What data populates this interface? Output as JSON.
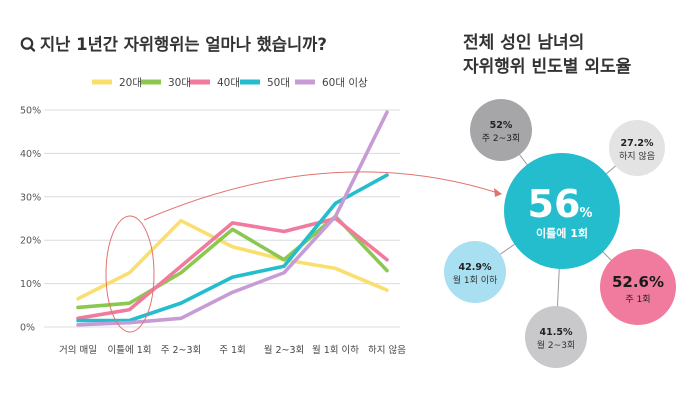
{
  "left_chart_title": "지난 1년간 자위행위는 얼마나 했습니까?",
  "right_chart_title_lines": [
    "전체 성인 남녀의",
    "자위행위 빈도별 외도율"
  ],
  "colors": {
    "20대": "#fbdf6e",
    "30대": "#8cc750",
    "40대": "#f07b9e",
    "50대": "#23bdcd",
    "60대 이상": "#c79cd6",
    "highlight": "#e2736d",
    "center_bubble": "#23bdcd",
    "bubble_dark_gray": "#a6a6a8",
    "bubble_light_gray": "#e3e3e4",
    "bubble_light_blue": "#a8e0f1",
    "bubble_pink": "#f07b9e",
    "bubble_mid_gray": "#c9c9cb"
  },
  "chart_data": [
    {
      "type": "line",
      "title": "지난 1년간 자위행위는 얼마나 했습니까?",
      "categories": [
        "거의 매일",
        "이틀에 1회",
        "주 2~3회",
        "주 1회",
        "월 2~3회",
        "월 1회 이하",
        "하지 않음"
      ],
      "yticks": [
        "0%",
        "10%",
        "20%",
        "30%",
        "40%",
        "50%"
      ],
      "ylim": [
        0,
        50
      ],
      "legend": "top",
      "grid": true,
      "highlight_category": "이틀에 1회",
      "series": [
        {
          "name": "20대",
          "values": [
            6.5,
            12.5,
            24.5,
            18.5,
            15.5,
            13.5,
            8.5
          ]
        },
        {
          "name": "30대",
          "values": [
            4.5,
            5.5,
            12.5,
            22.5,
            15.5,
            25.5,
            13.0
          ]
        },
        {
          "name": "40대",
          "values": [
            2.0,
            4.0,
            14.0,
            24.0,
            22.0,
            25.0,
            15.5
          ]
        },
        {
          "name": "50대",
          "values": [
            1.5,
            1.5,
            5.5,
            11.5,
            14.0,
            28.5,
            35.0
          ]
        },
        {
          "name": "60대 이상",
          "values": [
            0.5,
            1.0,
            2.0,
            8.0,
            12.5,
            25.5,
            49.5
          ]
        }
      ]
    },
    {
      "type": "bubble",
      "title": "전체 성인 남녀의 자위행위 빈도별 외도율",
      "center": {
        "value": "56",
        "unit": "%",
        "label": "이틀에 1회"
      },
      "satellites": [
        {
          "value": "52%",
          "label": "주 2~3회",
          "color": "bubble_dark_gray"
        },
        {
          "value": "27.2%",
          "label": "하지 않음",
          "color": "bubble_light_gray"
        },
        {
          "value": "42.9%",
          "label": "월 1회 이하",
          "color": "bubble_light_blue"
        },
        {
          "value": "52.6%",
          "label": "주 1회",
          "color": "bubble_pink"
        },
        {
          "value": "41.5%",
          "label": "월 2~3회",
          "color": "bubble_mid_gray"
        }
      ]
    }
  ]
}
